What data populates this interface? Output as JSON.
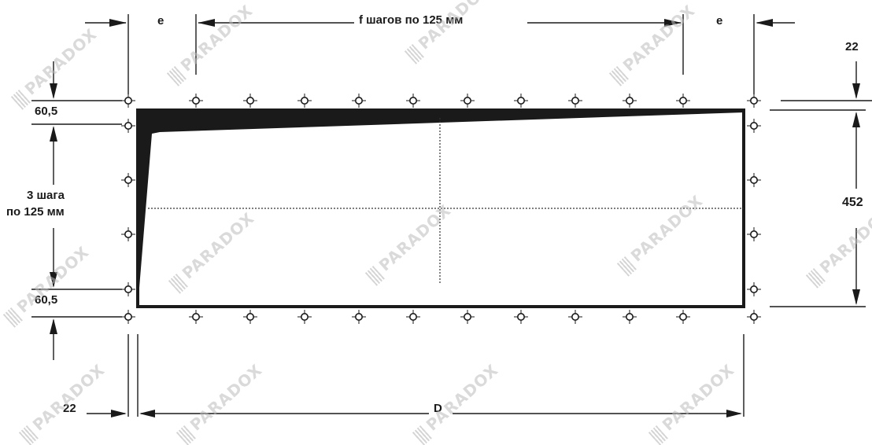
{
  "labels": {
    "e_left": "e",
    "e_right": "e",
    "f_steps": "f шагов по 125 мм",
    "top_offset": "60,5",
    "bottom_offset": "60,5",
    "steps_line1": "3 шага",
    "steps_line2": "по 125 мм",
    "right_top": "22",
    "height": "452",
    "bottom_left": "22",
    "width_d": "D"
  },
  "watermark": "PARADOX",
  "colors": {
    "line": "#1a1a1a",
    "background": "#ffffff",
    "watermark": "#bdbdbd"
  }
}
